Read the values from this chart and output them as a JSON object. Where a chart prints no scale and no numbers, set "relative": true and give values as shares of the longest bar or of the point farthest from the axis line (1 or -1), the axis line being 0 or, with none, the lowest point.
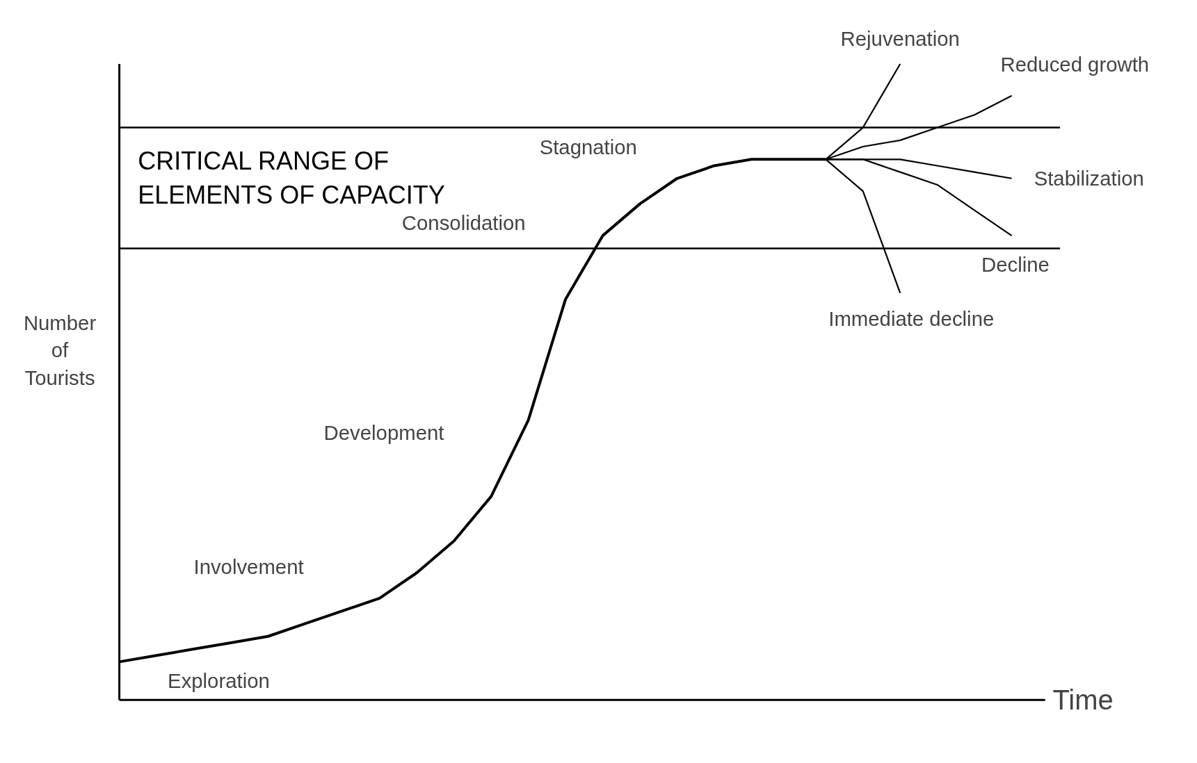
{
  "chart_data": {
    "type": "line",
    "relative": true,
    "xlabel": "Time",
    "ylabel": "Number\nof\nTourists",
    "legend": false,
    "grid": false,
    "line_style": "solid",
    "marker": "none",
    "categories": [
      null,
      null,
      null,
      null,
      null,
      null,
      null,
      null,
      null,
      null,
      null,
      null,
      null,
      null,
      null,
      null,
      null,
      null,
      null,
      null,
      null,
      null,
      null,
      null,
      null
    ],
    "series": [
      {
        "color": "#000000",
        "values": [
          0.06,
          0.07,
          0.08,
          0.09,
          0.1,
          0.12,
          0.14,
          0.16,
          0.2,
          0.25,
          0.32,
          0.44,
          0.63,
          0.73,
          0.78,
          0.82,
          0.84,
          0.85,
          0.85,
          0.85,
          null,
          null,
          null,
          null,
          null
        ]
      },
      {
        "name": "Rejuvenation",
        "color": "#000000",
        "values": [
          null,
          null,
          null,
          null,
          null,
          null,
          null,
          null,
          null,
          null,
          null,
          null,
          null,
          null,
          null,
          null,
          null,
          null,
          null,
          0.85,
          0.9,
          1.0,
          null,
          null,
          null
        ]
      },
      {
        "name": "Reduced growth",
        "color": "#000000",
        "values": [
          null,
          null,
          null,
          null,
          null,
          null,
          null,
          null,
          null,
          null,
          null,
          null,
          null,
          null,
          null,
          null,
          null,
          null,
          null,
          0.85,
          0.87,
          0.88,
          0.9,
          0.92,
          0.95
        ]
      },
      {
        "name": "Stabilization",
        "color": "#000000",
        "values": [
          null,
          null,
          null,
          null,
          null,
          null,
          null,
          null,
          null,
          null,
          null,
          null,
          null,
          null,
          null,
          null,
          null,
          null,
          null,
          0.85,
          0.85,
          0.85,
          0.84,
          0.83,
          0.82
        ]
      },
      {
        "name": "Decline",
        "color": "#000000",
        "values": [
          null,
          null,
          null,
          null,
          null,
          null,
          null,
          null,
          null,
          null,
          null,
          null,
          null,
          null,
          null,
          null,
          null,
          null,
          null,
          0.85,
          0.85,
          0.83,
          0.81,
          0.77,
          0.73
        ]
      },
      {
        "name": "Immediate decline",
        "color": "#000000",
        "values": [
          null,
          null,
          null,
          null,
          null,
          null,
          null,
          null,
          null,
          null,
          null,
          null,
          null,
          null,
          null,
          null,
          null,
          null,
          null,
          0.85,
          0.8,
          0.64,
          null,
          null,
          null
        ]
      }
    ],
    "ref_lines": [
      {
        "axis": "y",
        "value": 0.9,
        "label": "CRITICAL RANGE OF\nELEMENTS OF CAPACITY",
        "color": "#000000"
      },
      {
        "axis": "y",
        "value": 0.71,
        "color": "#000000"
      }
    ],
    "annotations": [
      "Exploration",
      "Involvement",
      "Development",
      "Consolidation",
      "Stagnation"
    ]
  }
}
